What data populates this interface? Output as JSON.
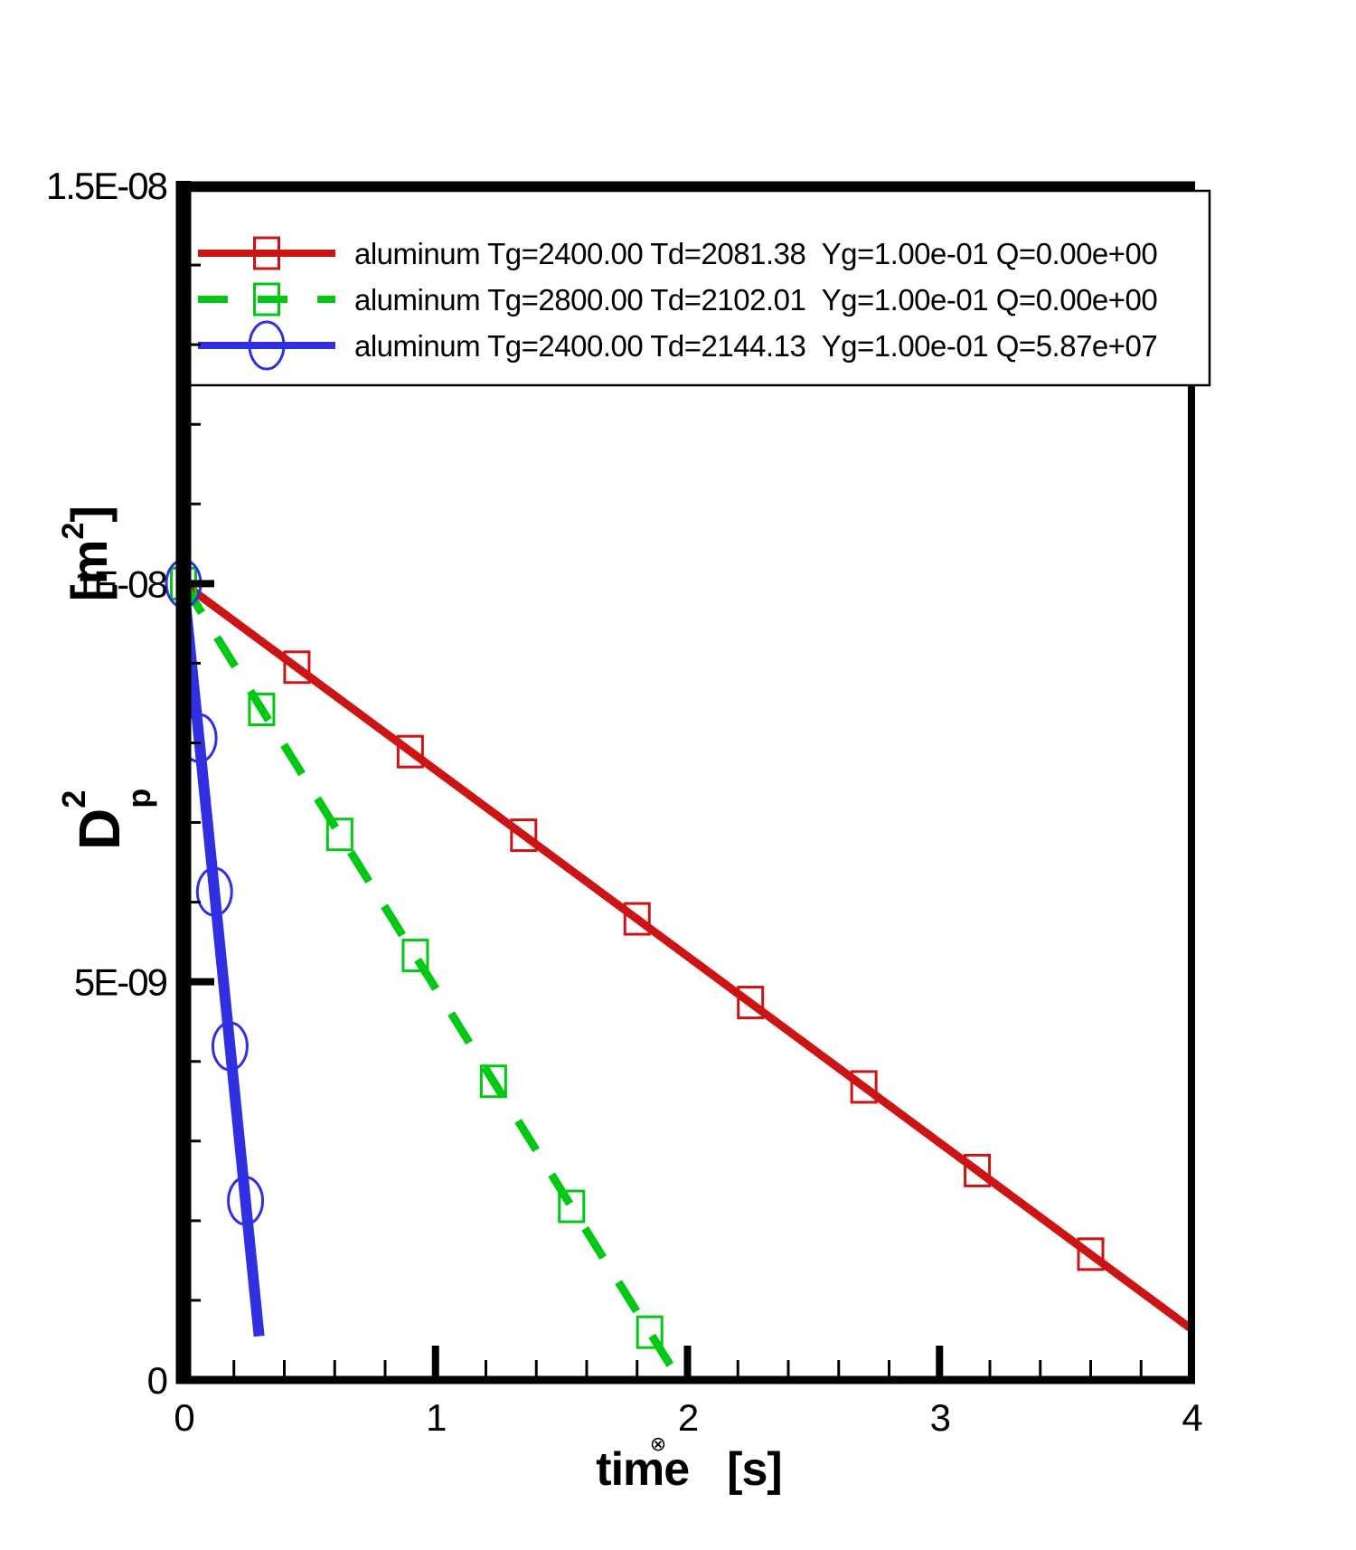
{
  "chart_data": {
    "type": "line",
    "title": "",
    "xlabel": "time [s]",
    "ylabel": "Dp2 [m2]",
    "xlabel_parts": {
      "word": "time",
      "unit": "[s]",
      "stray_glyph": "⊗"
    },
    "ylabel_parts": {
      "base": "D",
      "sup": "2",
      "sub": "p",
      "unit_open": "[m",
      "unit_sup": "2",
      "unit_close": "]"
    },
    "xlim": [
      0,
      4
    ],
    "ylim": [
      0,
      1.5e-08
    ],
    "x_major_ticks": [
      0,
      1,
      2,
      3,
      4
    ],
    "x_tick_labels": [
      "0",
      "1",
      "2",
      "3",
      "4"
    ],
    "x_minor_step": 0.2,
    "y_major_ticks": [
      0,
      5e-09,
      1e-08,
      1.5e-08
    ],
    "y_tick_labels": [
      "0",
      "5E-09",
      "1E-08",
      "1.5E-08"
    ],
    "y_minor_step": 1e-09,
    "grid": false,
    "legend_position": "top-inside",
    "background_color": "#ffffff",
    "axis_color": "#000000",
    "series": [
      {
        "name": "aluminum Tg=2400.00 Td=2081.38  Yg=1.00e-01 Q=0.00e+00",
        "color": "#cc1414",
        "line_style": "solid",
        "line_width": 9,
        "marker": "square",
        "line_x": [
          0,
          4
        ],
        "line_y": [
          1e-08,
          6.4e-10
        ],
        "marker_x": [
          0,
          0.45,
          0.9,
          1.35,
          1.8,
          2.25,
          2.7,
          3.15,
          3.6
        ],
        "marker_y": [
          1e-08,
          8.95e-09,
          7.89e-09,
          6.84e-09,
          5.79e-09,
          4.74e-09,
          3.68e-09,
          2.63e-09,
          1.58e-09
        ]
      },
      {
        "name": "aluminum Tg=2800.00 Td=2102.01  Yg=1.00e-01 Q=0.00e+00",
        "color": "#00c814",
        "line_style": "dashed",
        "line_width": 9,
        "marker": "square",
        "line_x": [
          0,
          1.968
        ],
        "line_y": [
          1e-08,
          0
        ],
        "marker_x": [
          0,
          0.31,
          0.62,
          0.92,
          1.23,
          1.54,
          1.85
        ],
        "marker_y": [
          1e-08,
          8.42e-09,
          6.85e-09,
          5.33e-09,
          3.75e-09,
          2.18e-09,
          6e-10
        ]
      },
      {
        "name": "aluminum Tg=2400.00 Td=2144.13  Yg=1.00e-01 Q=5.87e+07",
        "color": "#3030e0",
        "line_style": "solid",
        "line_width": 12,
        "marker": "circle",
        "line_x": [
          0,
          0.3
        ],
        "line_y": [
          1e-08,
          5.5e-10
        ],
        "marker_x": [
          0,
          0.0615,
          0.123,
          0.1845,
          0.246
        ],
        "marker_y": [
          1e-08,
          8.06e-09,
          6.13e-09,
          4.19e-09,
          2.25e-09
        ]
      }
    ]
  }
}
